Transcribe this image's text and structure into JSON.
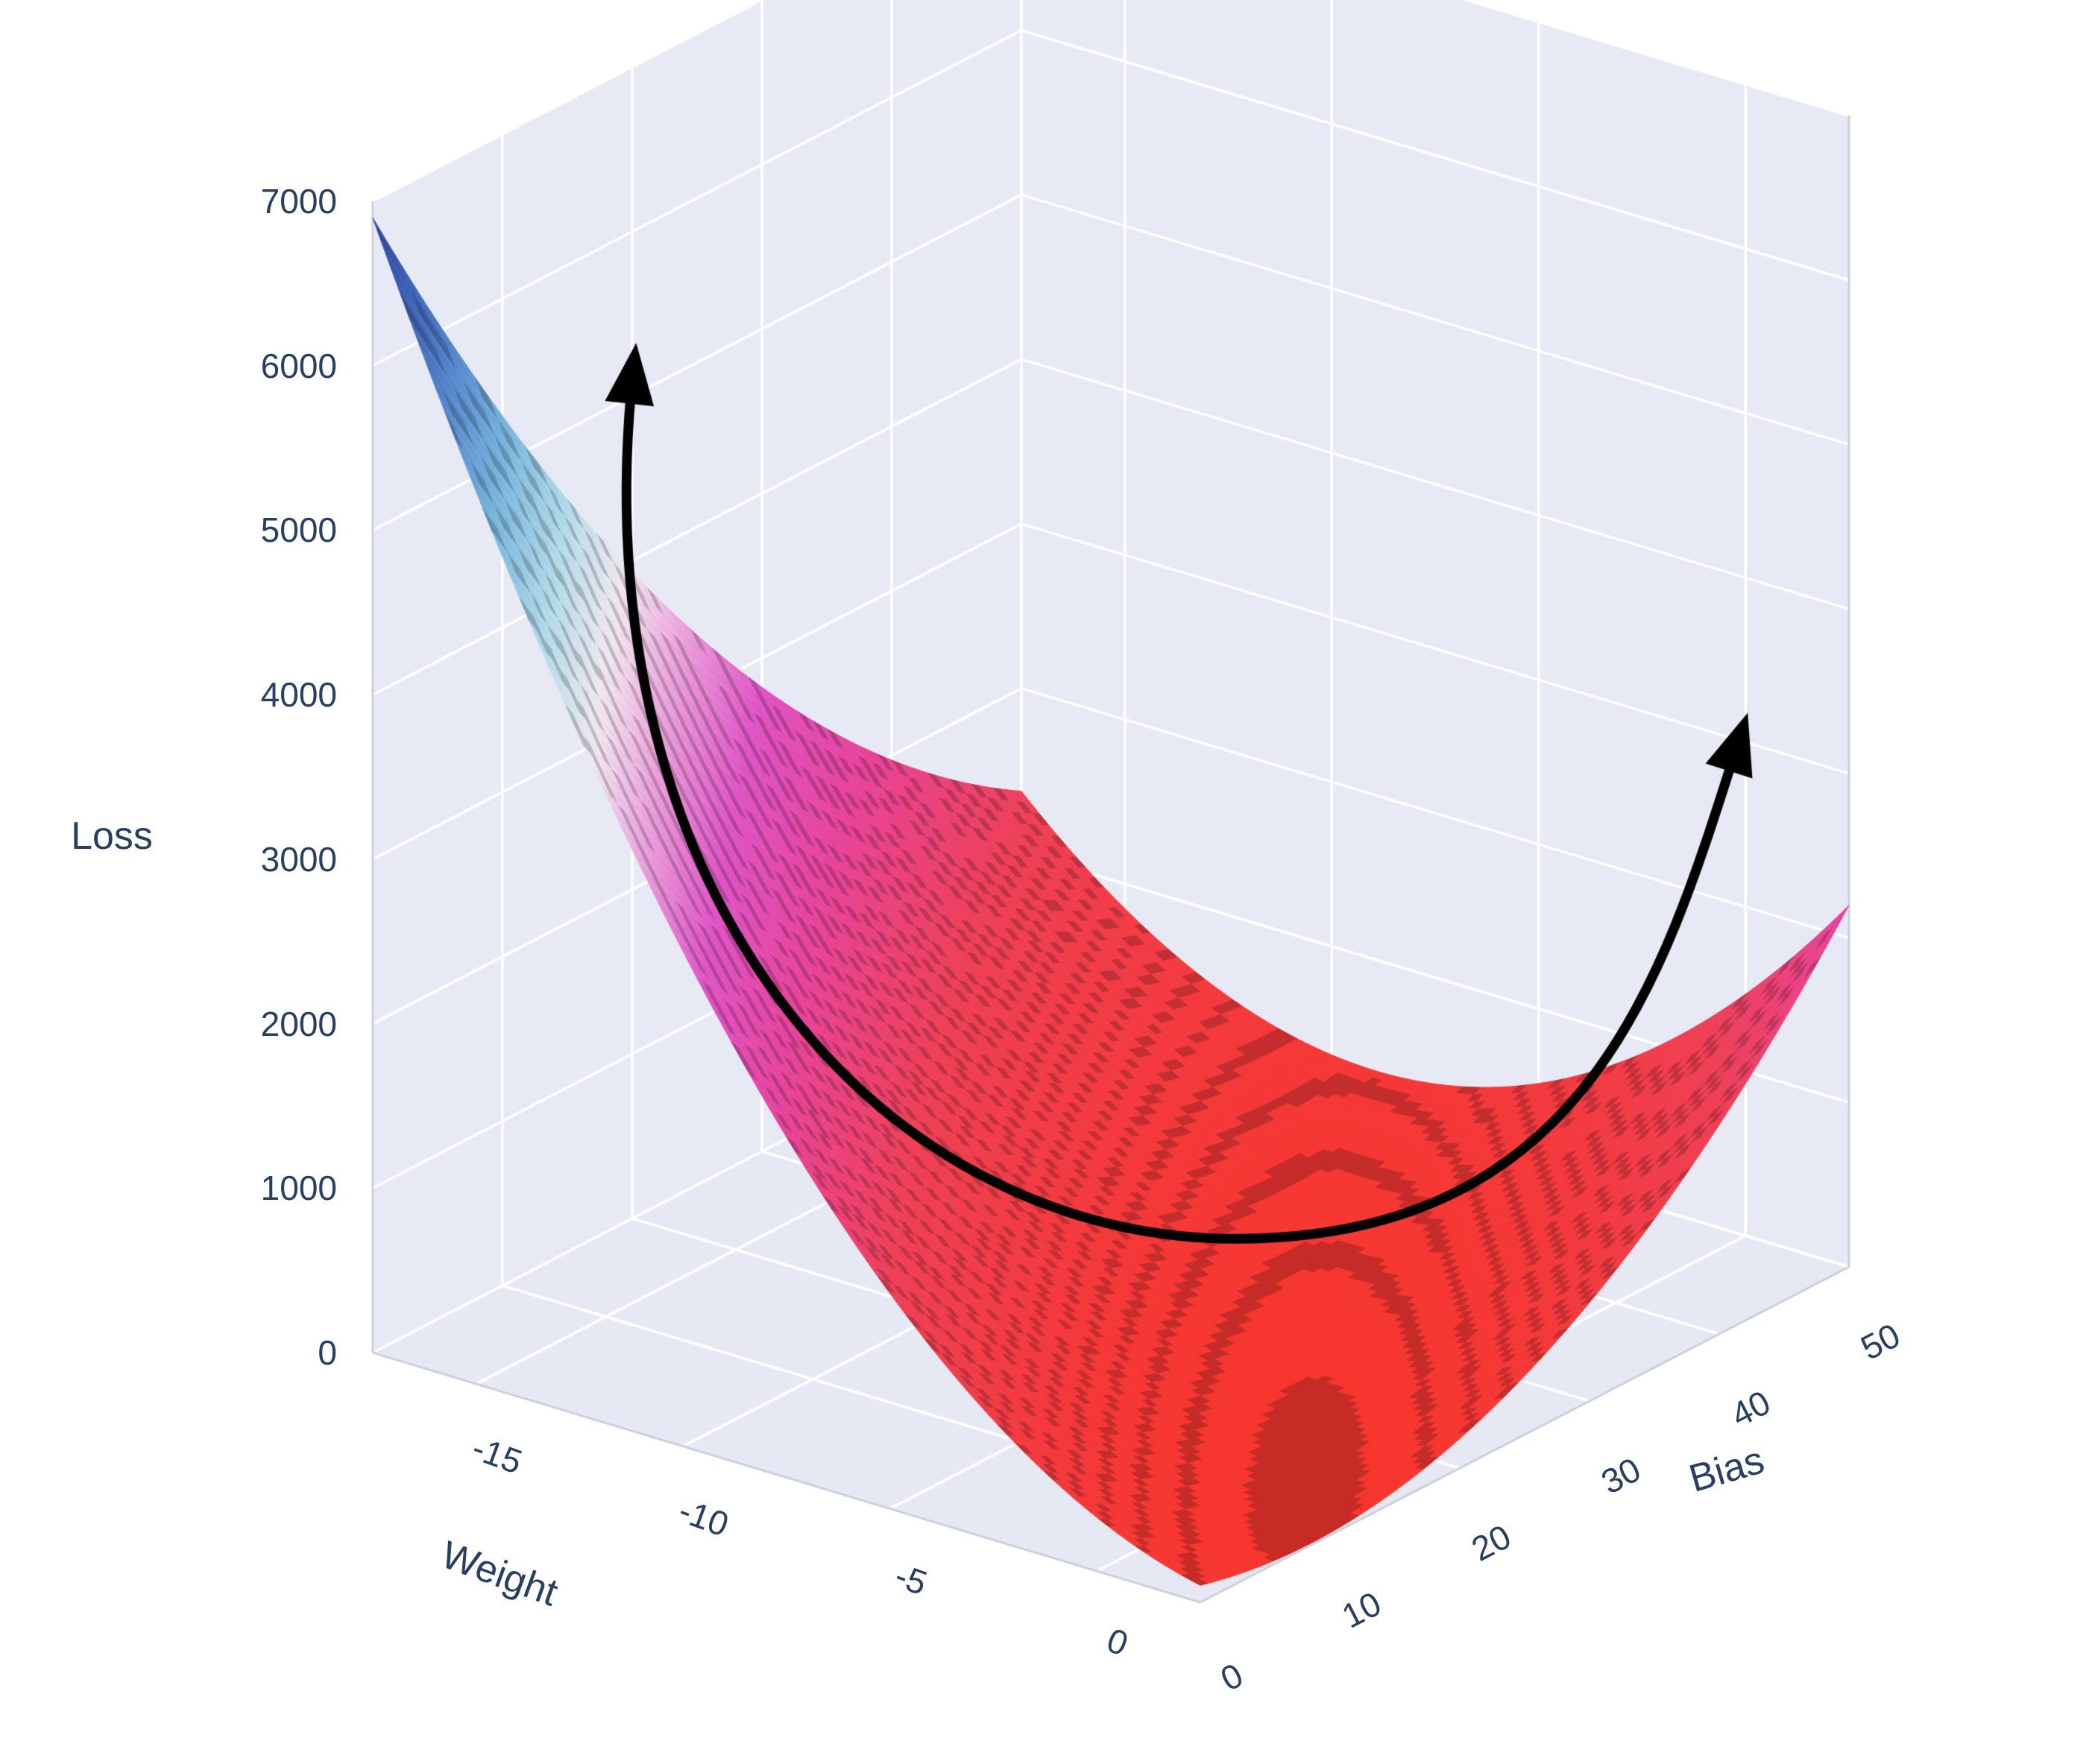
{
  "page": {
    "background": "#ffffff"
  },
  "chart_data": {
    "type": "surface",
    "title": "",
    "scene": {
      "wall_color": "#e7eaf4",
      "floor_color": "#e6e9f3",
      "grid_color": "#ffffff",
      "edge_color": "#c9cfdf",
      "tick_color": "#2a3f5f"
    },
    "axes": {
      "x": {
        "label": "Weight",
        "range": [
          -17.5,
          2.5
        ],
        "ticks": [
          -15,
          -10,
          -5,
          0
        ]
      },
      "y": {
        "label": "Bias",
        "range": [
          0,
          50
        ],
        "ticks": [
          0,
          10,
          20,
          30,
          40,
          50
        ]
      },
      "z": {
        "label": "Loss",
        "range": [
          0,
          7000
        ],
        "ticks": [
          0,
          1000,
          2000,
          3000,
          4000,
          5000,
          6000,
          7000
        ]
      }
    },
    "surface": {
      "description": "Quadratic MSE loss valley over (weight, bias); minimum ~0 near weight 0.5 / bias 14.5; blue peak ~6900 at weight -17.5 / bias 0; raised magenta tip ~2200 at weight 2.5 / bias 50",
      "z_formula": "loss = 1.27*(3*weight + bias - 16)^2 + 2.9*(weight - 0.5)^2",
      "coeffs": {
        "a": 1.27,
        "s": 3,
        "m": 16,
        "b2": 2.9,
        "w0": 0.5
      },
      "grid_n": 90,
      "contour_band": 95
    },
    "colorscale": [
      [
        0.0,
        "#f8362e"
      ],
      [
        0.18,
        "#ef4156"
      ],
      [
        0.3,
        "#e8459b"
      ],
      [
        0.4,
        "#df55c6"
      ],
      [
        0.5,
        "#ecaade"
      ],
      [
        0.57,
        "#f2e9f0"
      ],
      [
        0.65,
        "#b5dcea"
      ],
      [
        0.75,
        "#77b4dd"
      ],
      [
        0.86,
        "#4f7cc7"
      ],
      [
        1.0,
        "#2a3f9b"
      ]
    ],
    "annotation_arrow": {
      "description": "black double-headed curved arrow tracing the valley from the high-loss left slope through the minimum and up the right slope",
      "color": "#000000"
    }
  }
}
